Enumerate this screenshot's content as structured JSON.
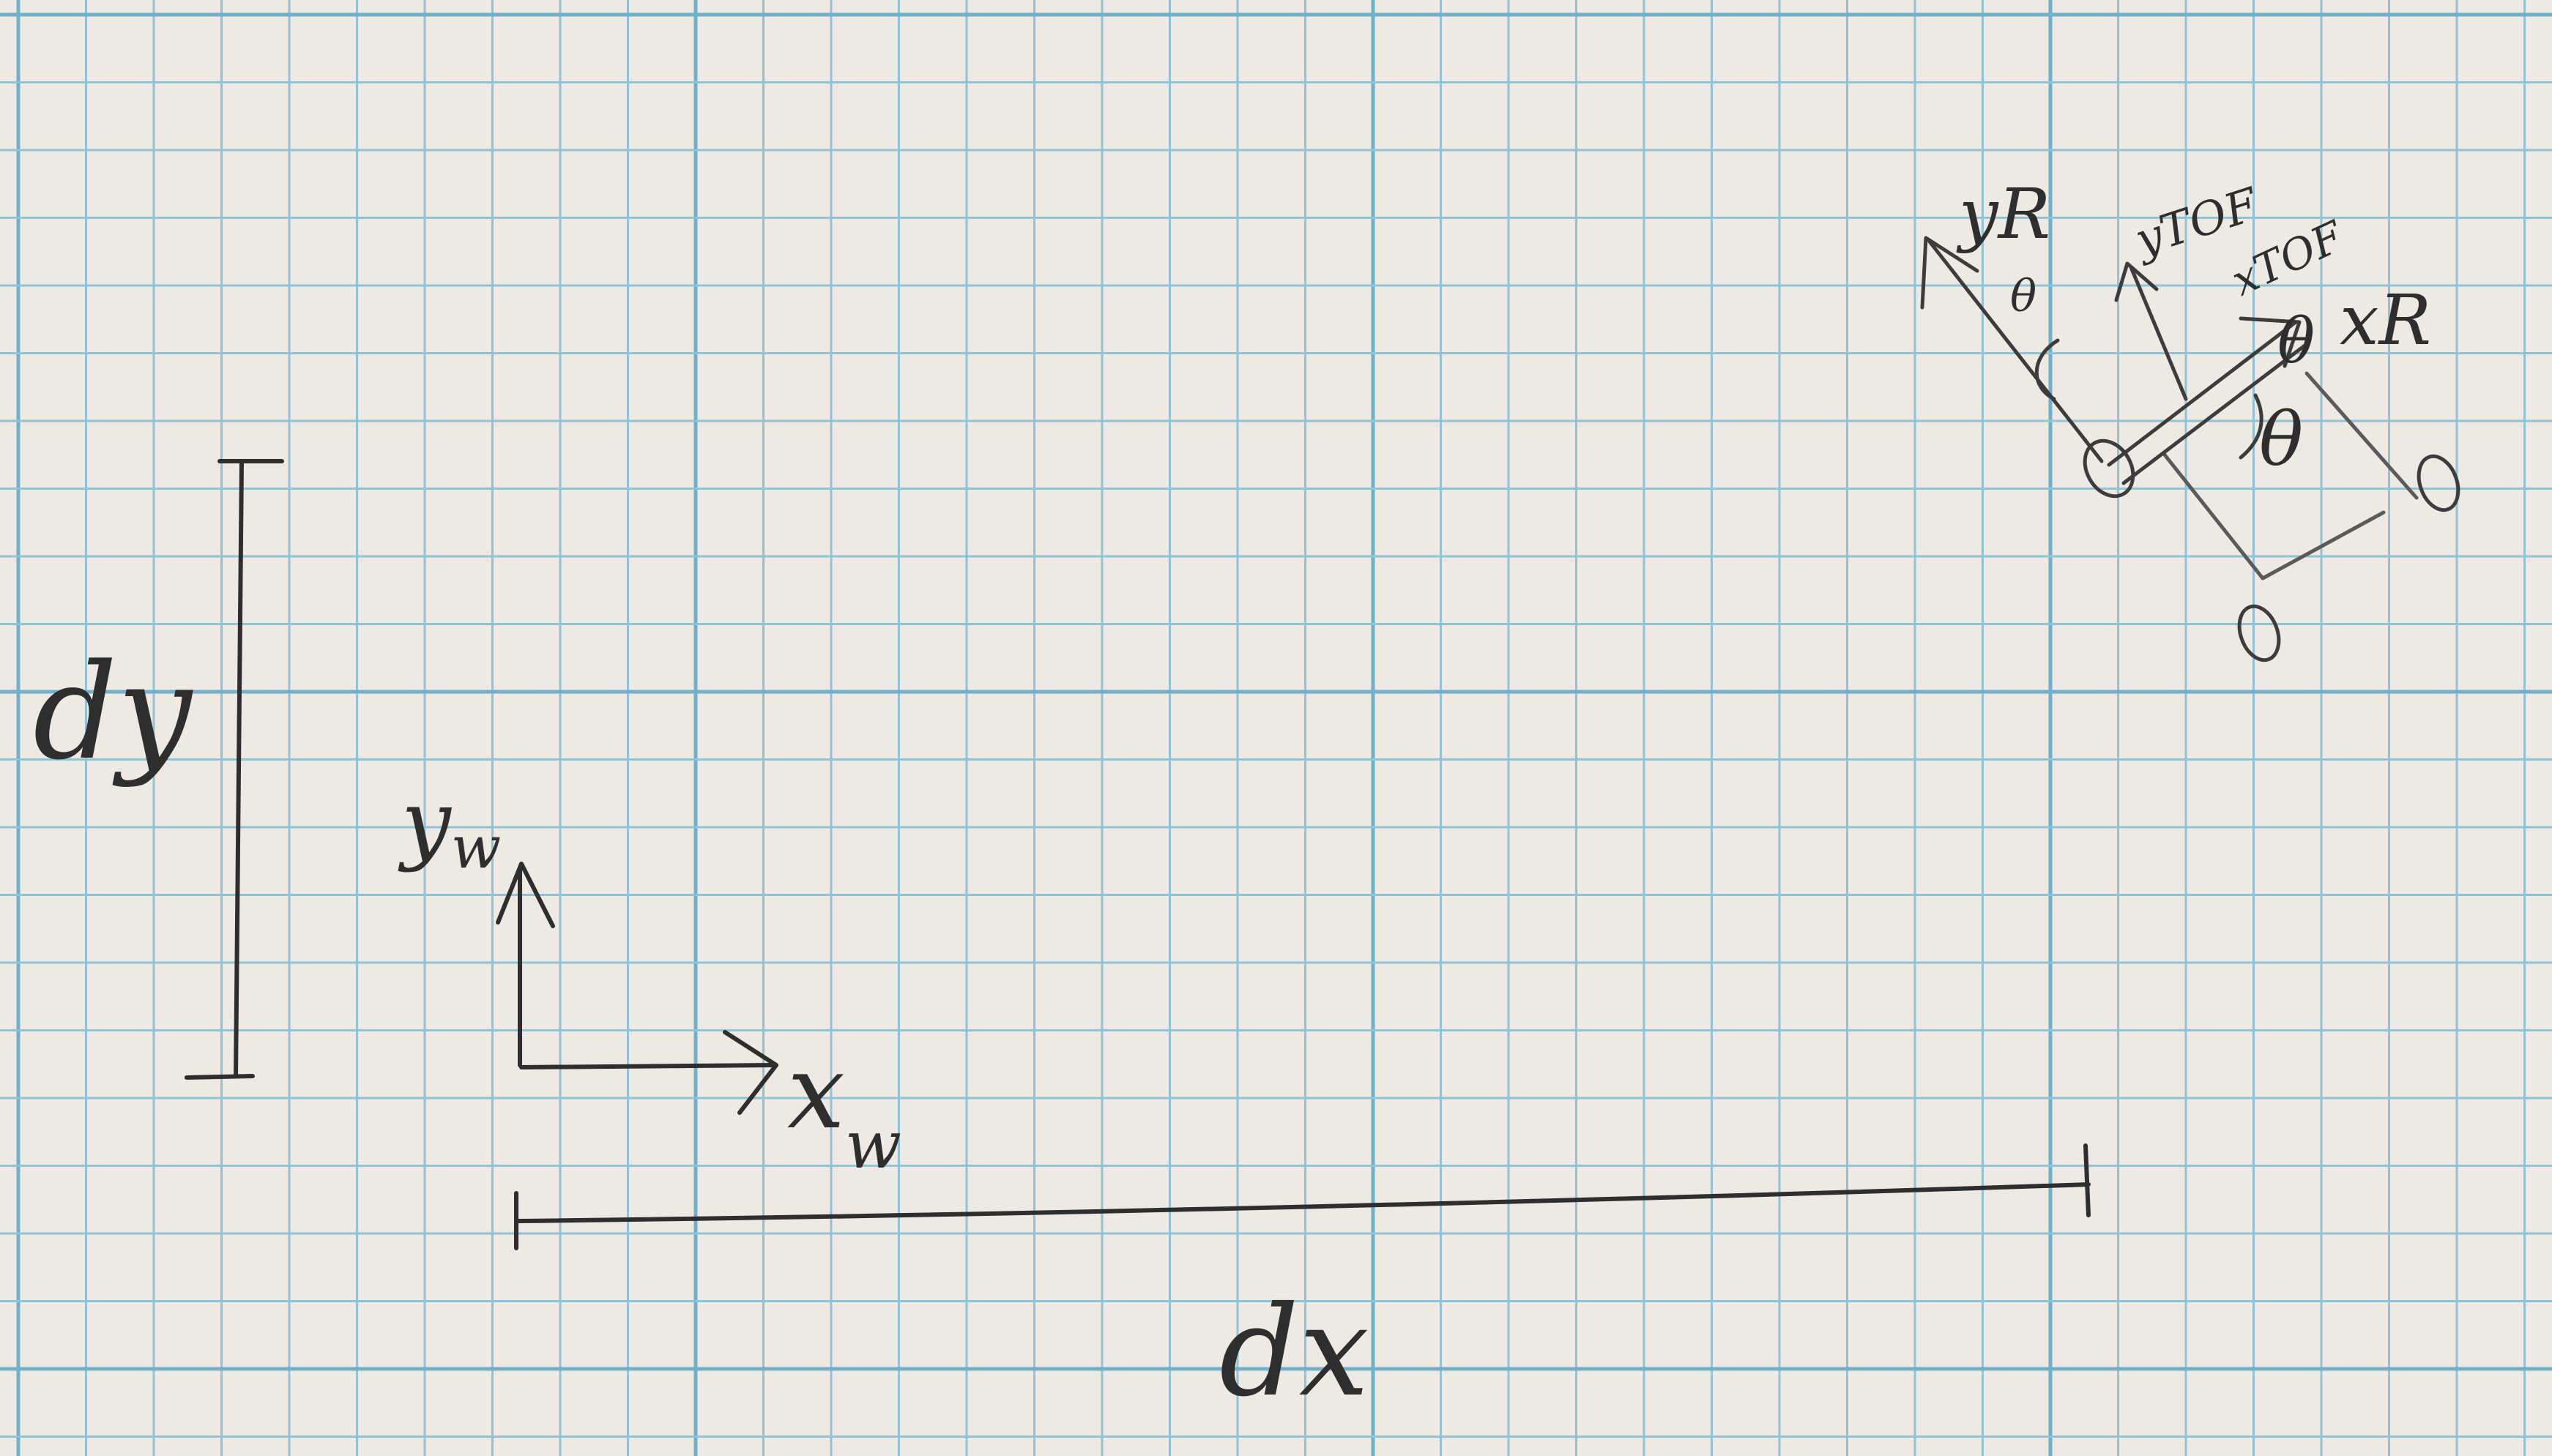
{
  "diagram": {
    "world_frame": {
      "x_label": "x",
      "x_subscript": "w",
      "y_label": "y",
      "y_subscript": "w"
    },
    "distances": {
      "dx_label": "dx",
      "dy_label": "dy"
    },
    "robot": {
      "y_robot_label": "yR",
      "x_robot_label": "xR",
      "y_tof_label": "yTOF",
      "x_tof_label": "xTOF",
      "theta_label_1": "θ",
      "theta_label_2": "θ",
      "theta_label_3": "θ"
    },
    "colors": {
      "paper": "#efe9e4",
      "grid_minor": "#8fc3d6",
      "grid_major": "#6fb1cb",
      "ink": "#2e2e2e",
      "ink_light": "#4a4a4a"
    }
  }
}
